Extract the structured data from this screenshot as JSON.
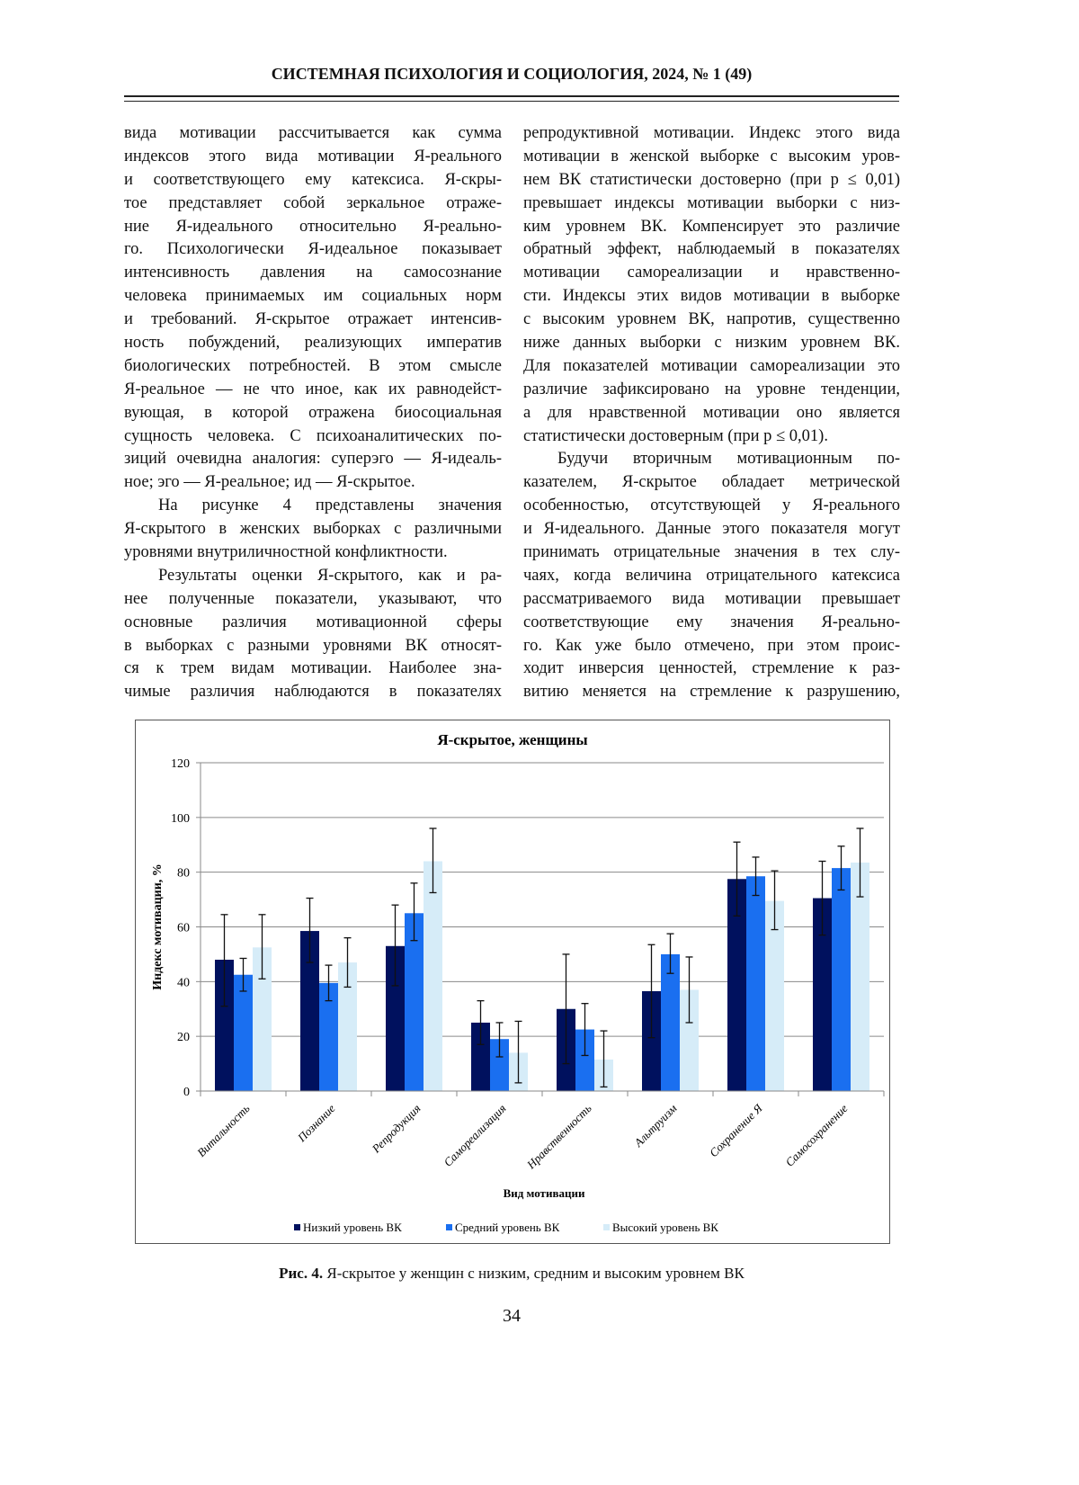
{
  "header": {
    "title": "СИСТЕМНАЯ ПСИХОЛОГИЯ И СОЦИОЛОГИЯ, 2024, № 1 (49)"
  },
  "left_column": {
    "paragraphs": [
      {
        "lines": [
          "вида мотивации рассчитывается как сумма",
          "индексов этого вида мотивации Я-реального",
          "и соответствующего ему катексиса. Я-скры-",
          "тое представляет собой зеркальное отраже-",
          "ние Я-идеального относительно Я-реально-",
          "го. Психологически Я-идеальное показывает",
          "интенсивность давления на самосознание",
          "человека принимаемых им социальных норм",
          "и требований. Я-скрытое отражает интенсив-",
          "ность побуждений, реализующих императив",
          "биологических потребностей. В этом смысле",
          "Я-реальное — не что иное, как их равнодейст-",
          "вующая, в которой отражена биосоциальная",
          "сущность человека. С психоаналитических по-",
          "зиций очевидна аналогия: суперэго — Я-идеаль-",
          "ное; эго — Я-реальное; ид — Я-скрытое."
        ]
      },
      {
        "lines": [
          "На рисунке 4 представлены значения",
          "Я-скрытого в женских выборках с различными",
          "уровнями внутриличностной конфликтности."
        ]
      },
      {
        "lines": [
          "Результаты оценки Я-скрытого, как и ра-",
          "нее полученные показатели, указывают, что",
          "основные различия мотивационной сферы",
          "в выборках с разными уровнями ВК относят-",
          "ся к трем видам мотивации. Наиболее зна-",
          "чимые различия наблюдаются в показателях"
        ],
        "continues": true
      }
    ]
  },
  "right_column": {
    "paragraphs": [
      {
        "lines": [
          "репродуктивной мотивации. Индекс этого вида",
          "мотивации в женской выборке с высоким уров-",
          "нем ВК статистически достоверно (при p ≤ 0,01)",
          "превышает индексы мотивации выборки с низ-",
          "ким уровнем ВК. Компенсирует это различие",
          "обратный эффект, наблюдаемый в показателях",
          "мотивации самореализации и нравственно-",
          "сти. Индексы этих видов мотивации в выборке",
          "с высоким уровнем ВК, напротив, существенно",
          "ниже данных выборки с низким уровнем ВК.",
          "Для показателей мотивации самореализации это",
          "различие зафиксировано на уровне тенденции,",
          "а для нравственной мотивации оно является",
          "статистически достоверным (при p ≤ 0,01)."
        ]
      },
      {
        "lines": [
          "Будучи вторичным мотивационным по-",
          "казателем, Я-скрытое обладает метрической",
          "особенностью, отсутствующей у Я-реального",
          "и Я-идеального. Данные этого показателя могут",
          "принимать отрицательные значения в тех слу-",
          "чаях, когда величина отрицательного катексиса",
          "рассматриваемого вида мотивации превышает",
          "соответствующие ему значения Я-реально-",
          "го. Как уже было отмечено, при этом проис-",
          "ходит инверсия ценностей, стремление к раз-",
          "витию меняется на стремление к разрушению,"
        ],
        "continues": true
      }
    ]
  },
  "chart_data": {
    "type": "bar",
    "title": "Я-скрытое, женщины",
    "xlabel": "Вид мотивации",
    "ylabel": "Индекс мотивации, %",
    "ylim": [
      0,
      120
    ],
    "yticks": [
      0,
      20,
      40,
      60,
      80,
      100,
      120
    ],
    "grid": true,
    "legend_position": "bottom",
    "error_bars": true,
    "categories": [
      "Витальность",
      "Познание",
      "Репродукция",
      "Самореализация",
      "Нравственность",
      "Альтруизм",
      "Сохранение   Я",
      "Самосохранение"
    ],
    "series": [
      {
        "name": "Низкий уровень ВК",
        "color": "#00115e",
        "values": [
          48,
          58.5,
          53,
          25,
          30,
          36.5,
          77.5,
          70.5
        ],
        "error_low": [
          31,
          47,
          38.5,
          17,
          10,
          19.5,
          64,
          57
        ],
        "error_high": [
          64.5,
          70.5,
          68,
          33,
          50,
          53.5,
          91,
          84
        ]
      },
      {
        "name": "Средний уровень ВК",
        "color": "#1a6ff0",
        "values": [
          42.5,
          39.5,
          65,
          19,
          22.5,
          50,
          78.5,
          81.5
        ],
        "error_low": [
          36.5,
          33,
          55,
          12.5,
          13,
          43,
          71.5,
          73.5
        ],
        "error_high": [
          48.5,
          46,
          76,
          25,
          32,
          57.5,
          85.5,
          89.5
        ]
      },
      {
        "name": "Высокий уровень ВК",
        "color": "#d6ecf8",
        "values": [
          52.5,
          47,
          84,
          14,
          11.5,
          37,
          69.5,
          83.5
        ],
        "error_low": [
          41,
          38,
          72.5,
          3,
          1.5,
          25,
          59,
          71
        ],
        "error_high": [
          64.5,
          56,
          96,
          25.5,
          22,
          49,
          80.5,
          96
        ]
      }
    ]
  },
  "figure_caption": {
    "label": "Рис. 4.",
    "text": " Я-скрытое у женщин с низким, средним и высоким уровнем ВК"
  },
  "page_number": "34"
}
